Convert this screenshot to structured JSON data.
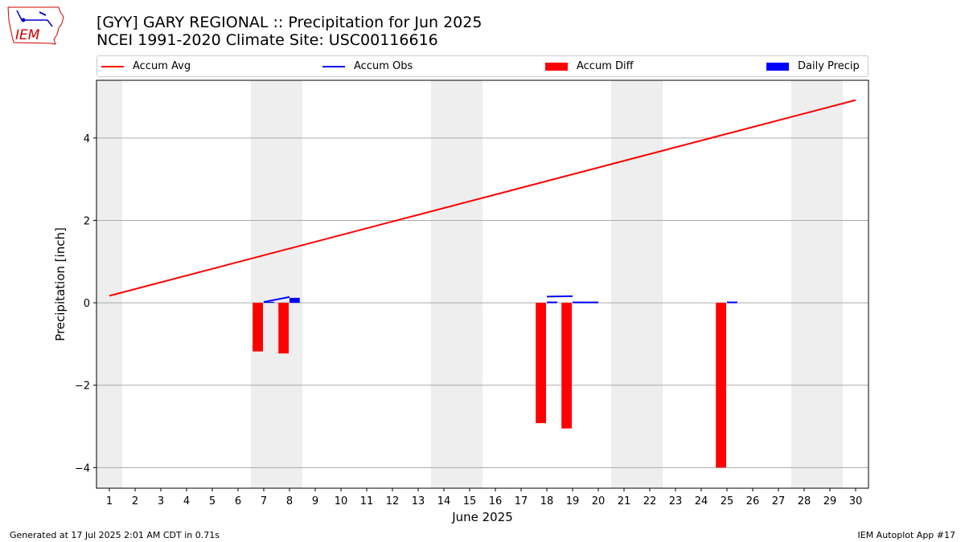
{
  "header": {
    "title_line1": "[GYY] GARY REGIONAL :: Precipitation for Jun 2025",
    "title_line2": "NCEI 1991-2020 Climate Site: USC00116616"
  },
  "logo": {
    "text": "IEM",
    "icon": "iowa-weather-logo-icon"
  },
  "footer": {
    "generated": "Generated at 17 Jul 2025 2:01 AM CDT in 0.71s",
    "app": "IEM Autoplot App #17"
  },
  "colors": {
    "avg": "#ff0000",
    "obs": "#0000ff",
    "diff": "#ff0000",
    "daily": "#0000ff",
    "weekend": "#eeeeee",
    "grid": "#aaaaaa"
  },
  "legend": [
    {
      "label": "Accum Avg",
      "kind": "line",
      "color": "#ff0000"
    },
    {
      "label": "Accum Obs",
      "kind": "line",
      "color": "#0000ff"
    },
    {
      "label": "Accum Diff",
      "kind": "box",
      "color": "#ff0000"
    },
    {
      "label": "Daily Precip",
      "kind": "box",
      "color": "#0000ff"
    }
  ],
  "chart_data": {
    "type": "bar",
    "xlabel": "June 2025",
    "ylabel": "Precipitation [inch]",
    "xlim": [
      0.5,
      30.5
    ],
    "ylim": [
      -4.5,
      5.4
    ],
    "y_ticks": [
      -4,
      -2,
      0,
      2,
      4
    ],
    "y_tick_labels": [
      "−4",
      "−2",
      "0",
      "2",
      "4"
    ],
    "x_ticks": [
      1,
      2,
      3,
      4,
      5,
      6,
      7,
      8,
      9,
      10,
      11,
      12,
      13,
      14,
      15,
      16,
      17,
      18,
      19,
      20,
      21,
      22,
      23,
      24,
      25,
      26,
      27,
      28,
      29,
      30
    ],
    "grid": "horizontal",
    "legend_position": "top",
    "weekend_spans": [
      [
        0.5,
        1.5
      ],
      [
        6.5,
        8.5
      ],
      [
        13.5,
        15.5
      ],
      [
        20.5,
        22.5
      ],
      [
        27.5,
        29.5
      ]
    ],
    "accum_avg": {
      "x": [
        1,
        30
      ],
      "y": [
        0.17,
        4.92
      ]
    },
    "accum_obs_segments": [
      {
        "x": [
          7,
          8
        ],
        "y": [
          0.02,
          0.14
        ]
      },
      {
        "x": [
          18,
          19
        ],
        "y": [
          0.15,
          0.16
        ]
      },
      {
        "x": [
          19,
          20
        ],
        "y": [
          0.01,
          0.01
        ]
      },
      {
        "x": [
          18,
          18.4
        ],
        "y": [
          0.01,
          0.01
        ]
      },
      {
        "x": [
          25,
          25.4
        ],
        "y": [
          0.01,
          0.01
        ]
      }
    ],
    "accum_diff": [
      {
        "day": 7,
        "value": -1.18
      },
      {
        "day": 8,
        "value": -1.23
      },
      {
        "day": 18,
        "value": -2.92
      },
      {
        "day": 19,
        "value": -3.05
      },
      {
        "day": 25,
        "value": -4.0
      }
    ],
    "daily_precip": [
      {
        "day": 7,
        "value": 0.02
      },
      {
        "day": 8,
        "value": 0.12
      },
      {
        "day": 18,
        "value": 0.01
      },
      {
        "day": 19,
        "value": 0.01
      },
      {
        "day": 25,
        "value": 0.01
      }
    ]
  }
}
